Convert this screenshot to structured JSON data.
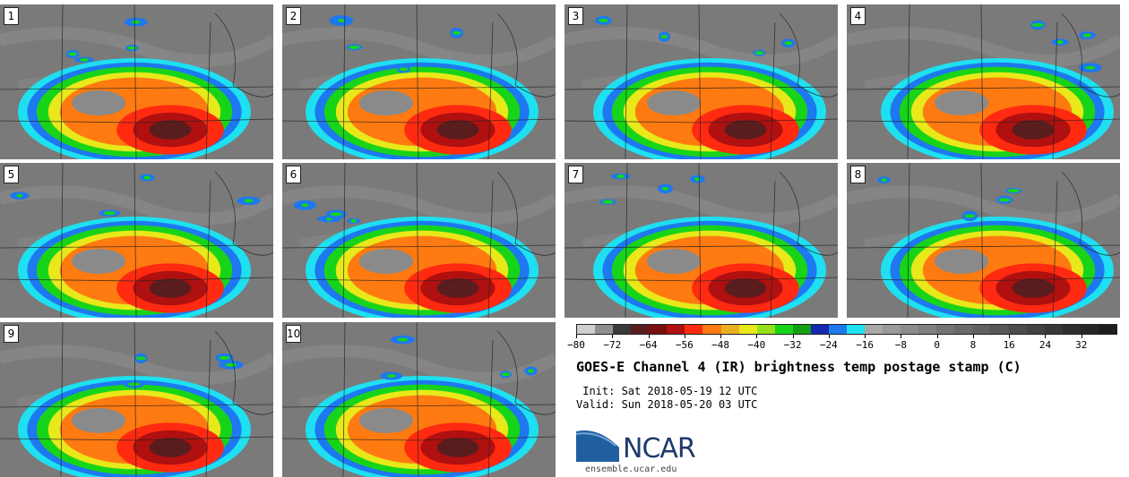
{
  "panels": [
    {
      "label": "1"
    },
    {
      "label": "2"
    },
    {
      "label": "3"
    },
    {
      "label": "4"
    },
    {
      "label": "5"
    },
    {
      "label": "6"
    },
    {
      "label": "7"
    },
    {
      "label": "8"
    },
    {
      "label": "9"
    },
    {
      "label": "10"
    }
  ],
  "colorbar": {
    "colors": [
      "#cfcfcf",
      "#8f8f8f",
      "#3a3a3a",
      "#5a1d1d",
      "#7a0f0f",
      "#b01010",
      "#ff2a10",
      "#ff7a10",
      "#e8b020",
      "#e8e81a",
      "#96e01a",
      "#18d418",
      "#12a012",
      "#1428b0",
      "#1e78f0",
      "#1ee0f0",
      "#a8a8a8",
      "#9a9a9a",
      "#8c8c8c",
      "#808080",
      "#747474",
      "#6a6a6a",
      "#606060",
      "#565656",
      "#4c4c4c",
      "#424242",
      "#383838",
      "#2e2e2e",
      "#262626",
      "#1e1e1e"
    ],
    "ticks": [
      "−80",
      "−72",
      "−64",
      "−56",
      "−48",
      "−40",
      "−32",
      "−24",
      "−16",
      "−8",
      "0",
      "8",
      "16",
      "24",
      "32"
    ]
  },
  "title": "GOES-E Channel 4 (IR) brightness temp postage stamp (C)",
  "init": " Init: Sat 2018-05-19 12 UTC",
  "valid": "Valid: Sun 2018-05-20 03 UTC",
  "logo": {
    "text": "NCAR",
    "url": "ensemble.ucar.edu",
    "brand_color": "#1f5fa0"
  }
}
